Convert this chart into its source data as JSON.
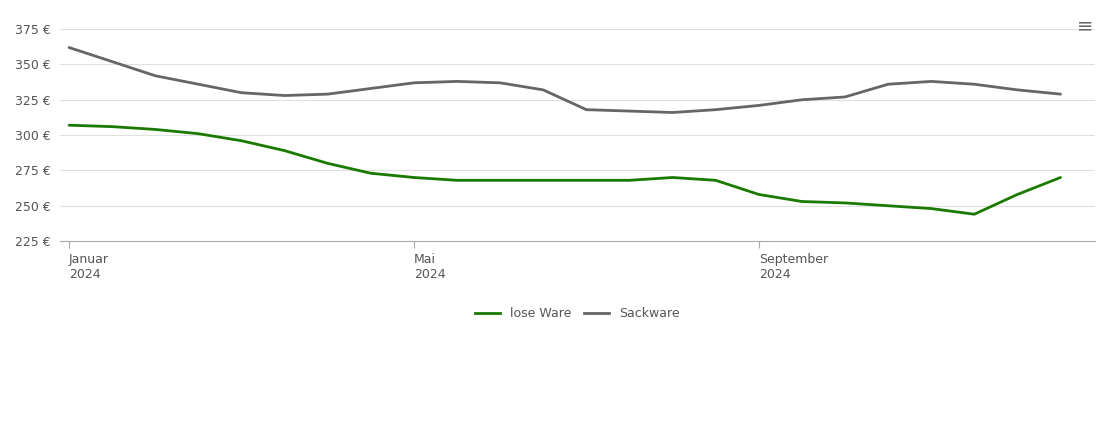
{
  "ylim": [
    225,
    385
  ],
  "yticks": [
    225,
    250,
    275,
    300,
    325,
    350,
    375
  ],
  "xtick_labels": [
    "Januar\n2024",
    "Mai\n2024",
    "September\n2024"
  ],
  "xtick_positions": [
    0,
    4,
    8
  ],
  "background_color": "#ffffff",
  "grid_color": "#e0e0e0",
  "lose_ware_color": "#1a7a00",
  "sackware_color": "#666666",
  "line_width": 2.0,
  "legend_labels": [
    "lose Ware",
    "Sackware"
  ],
  "lose_ware_x": [
    0,
    0.5,
    1,
    1.5,
    2,
    2.5,
    3,
    3.5,
    4,
    4.5,
    5,
    5.5,
    6,
    6.5,
    7,
    7.5,
    8,
    8.5,
    9,
    9.5,
    10,
    10.5,
    11,
    11.5
  ],
  "lose_ware_y": [
    307,
    306,
    304,
    301,
    296,
    289,
    280,
    273,
    270,
    268,
    268,
    268,
    268,
    268,
    270,
    268,
    258,
    253,
    252,
    250,
    248,
    244,
    258,
    270
  ],
  "sackware_x": [
    0,
    0.5,
    1,
    1.5,
    2,
    2.5,
    3,
    3.5,
    4,
    4.5,
    5,
    5.5,
    6,
    6.5,
    7,
    7.5,
    8,
    8.5,
    9,
    9.5,
    10,
    10.5,
    11,
    11.5
  ],
  "sackware_y": [
    362,
    352,
    342,
    336,
    330,
    328,
    329,
    333,
    337,
    338,
    337,
    332,
    318,
    317,
    316,
    318,
    321,
    325,
    327,
    336,
    338,
    336,
    332,
    329
  ]
}
